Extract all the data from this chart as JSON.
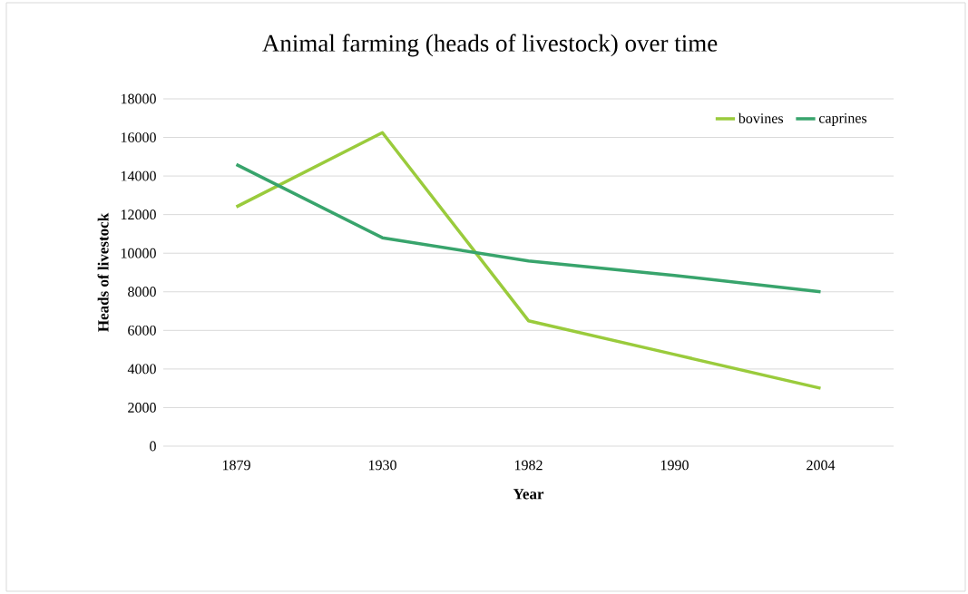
{
  "chart_data": {
    "type": "line",
    "title": "Animal farming (heads of livestock) over time",
    "xlabel": "Year",
    "ylabel": "Heads of livestock",
    "categories": [
      "1879",
      "1930",
      "1982",
      "1990",
      "2004"
    ],
    "series": [
      {
        "name": "bovines",
        "color": "#9acb3c",
        "values": [
          12400,
          16250,
          6500,
          4750,
          3000
        ]
      },
      {
        "name": "caprines",
        "color": "#38a46c",
        "values": [
          14600,
          10800,
          9600,
          8850,
          8000
        ]
      }
    ],
    "ylim": [
      0,
      18000
    ],
    "yticks": [
      0,
      2000,
      4000,
      6000,
      8000,
      10000,
      12000,
      14000,
      16000,
      18000
    ],
    "grid": "y",
    "legend": "top right",
    "marker": "none",
    "line_style": "solid"
  }
}
